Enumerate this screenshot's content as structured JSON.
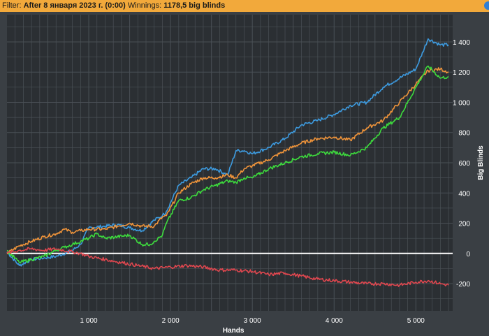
{
  "filter": {
    "label": "Filter:",
    "value": "After 8 января 2023 г. (0:00)",
    "winnings_label": "Winnings:",
    "winnings_value": "1178,5 big blinds"
  },
  "colors": {
    "background": "#3a3f44",
    "plot_background": "#2b2f33",
    "grid": "#4a5056",
    "zero_line": "#ffffff",
    "filter_bar": "#f2a93b"
  },
  "chart_data": {
    "type": "line",
    "xlabel": "Hands",
    "ylabel": "Big Blinds",
    "xlim": [
      0,
      5450
    ],
    "ylim": [
      -380,
      1580
    ],
    "x_ticks": [
      {
        "value": 1000,
        "label": "1 000"
      },
      {
        "value": 2000,
        "label": "2 000"
      },
      {
        "value": 3000,
        "label": "3 000"
      },
      {
        "value": 4000,
        "label": "4 000"
      },
      {
        "value": 5000,
        "label": "5 000"
      }
    ],
    "y_ticks": [
      {
        "value": -200,
        "label": "-200"
      },
      {
        "value": 0,
        "label": "0"
      },
      {
        "value": 200,
        "label": "200"
      },
      {
        "value": 400,
        "label": "400"
      },
      {
        "value": 600,
        "label": "600"
      },
      {
        "value": 800,
        "label": "800"
      },
      {
        "value": 1000,
        "label": "1 000"
      },
      {
        "value": 1200,
        "label": "1 200"
      },
      {
        "value": 1400,
        "label": "1 400"
      }
    ],
    "grid": true,
    "series": [
      {
        "color": "#3d9be0",
        "x": [
          0,
          150,
          300,
          450,
          600,
          800,
          900,
          1000,
          1200,
          1350,
          1500,
          1650,
          1800,
          1900,
          1950,
          2100,
          2250,
          2400,
          2550,
          2700,
          2800,
          2900,
          3000,
          3200,
          3400,
          3600,
          3800,
          4000,
          4200,
          4400,
          4600,
          4800,
          5000,
          5150,
          5300,
          5400
        ],
        "y": [
          10,
          -80,
          -40,
          -30,
          -20,
          20,
          60,
          170,
          180,
          190,
          170,
          150,
          220,
          250,
          280,
          450,
          500,
          560,
          560,
          520,
          680,
          680,
          660,
          700,
          760,
          850,
          880,
          920,
          980,
          1000,
          1100,
          1160,
          1220,
          1420,
          1380,
          1380
        ]
      },
      {
        "color": "#f0943a",
        "x": [
          0,
          150,
          300,
          450,
          600,
          700,
          800,
          900,
          1000,
          1200,
          1350,
          1500,
          1650,
          1800,
          1900,
          1950,
          2100,
          2250,
          2400,
          2550,
          2700,
          2800,
          2900,
          3000,
          3200,
          3400,
          3600,
          3800,
          4000,
          4200,
          4400,
          4600,
          4800,
          5000,
          5150,
          5300,
          5400
        ],
        "y": [
          0,
          50,
          80,
          110,
          130,
          160,
          140,
          150,
          160,
          160,
          180,
          200,
          180,
          180,
          240,
          250,
          400,
          460,
          500,
          500,
          520,
          500,
          560,
          580,
          620,
          680,
          730,
          760,
          770,
          750,
          830,
          880,
          1000,
          1120,
          1210,
          1220,
          1200
        ]
      },
      {
        "color": "#3ddc3d",
        "x": [
          0,
          150,
          300,
          450,
          600,
          700,
          800,
          900,
          1000,
          1100,
          1200,
          1350,
          1500,
          1650,
          1750,
          1800,
          1900,
          1950,
          2100,
          2250,
          2400,
          2550,
          2700,
          2800,
          2900,
          3000,
          3200,
          3400,
          3600,
          3800,
          4000,
          4200,
          4400,
          4600,
          4800,
          5000,
          5150,
          5300,
          5400
        ],
        "y": [
          20,
          -60,
          -40,
          -20,
          20,
          40,
          60,
          80,
          100,
          130,
          100,
          110,
          120,
          60,
          60,
          80,
          120,
          200,
          350,
          370,
          420,
          450,
          480,
          470,
          500,
          500,
          560,
          600,
          640,
          660,
          670,
          650,
          700,
          830,
          900,
          1100,
          1240,
          1160,
          1170
        ]
      },
      {
        "color": "#e0474f",
        "x": [
          0,
          150,
          300,
          450,
          600,
          800,
          900,
          1000,
          1200,
          1400,
          1600,
          1800,
          2000,
          2200,
          2400,
          2600,
          2800,
          3000,
          3200,
          3400,
          3600,
          3800,
          4000,
          4200,
          4400,
          4600,
          4800,
          5000,
          5150,
          5300,
          5400
        ],
        "y": [
          0,
          20,
          30,
          20,
          30,
          10,
          0,
          -20,
          -40,
          -60,
          -80,
          -100,
          -90,
          -80,
          -90,
          -110,
          -110,
          -120,
          -140,
          -130,
          -150,
          -170,
          -180,
          -190,
          -200,
          -200,
          -210,
          -190,
          -180,
          -200,
          -210
        ]
      }
    ]
  }
}
